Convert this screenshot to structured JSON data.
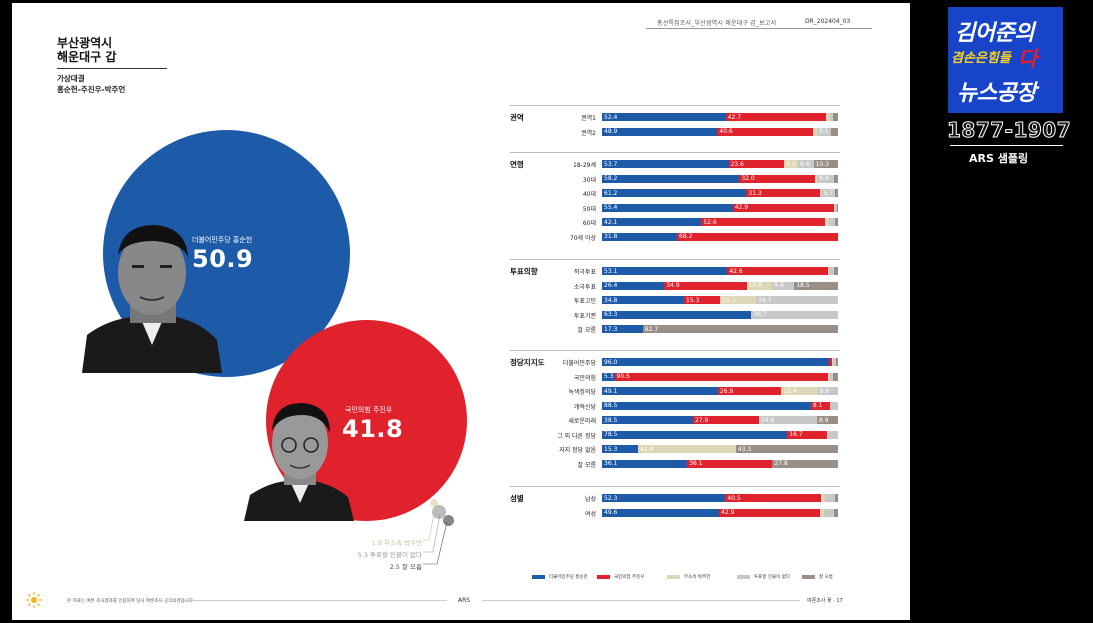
{
  "header": {
    "report": "총선특집조사_부산광역시 해운대구 갑_보고서",
    "code": "DR_202404_03"
  },
  "region": {
    "line1": "부산광역시",
    "line2": "해운대구 갑"
  },
  "matchup": {
    "line1": "가상대결",
    "line2": "홍순헌-주진우-박주언"
  },
  "candidates": {
    "a": {
      "name": "더불어민주당 홍순헌",
      "value": "50.9"
    },
    "b": {
      "name": "국민의힘 주진우",
      "value": "41.8"
    }
  },
  "minor": [
    {
      "text": "1.6 무소속 박주언",
      "color": "#c8bd8f"
    },
    {
      "text": "5.3 투표할 인물이 없다",
      "color": "#9a9a9a"
    },
    {
      "text": "2.5 잘 모름",
      "color": "#555555"
    }
  ],
  "colors": {
    "blue": "#1d5aa8",
    "red": "#e0222c",
    "tan": "#ddd6b7",
    "gray": "#c8c8c8",
    "brown": "#9a8f86"
  },
  "chart_data": {
    "type": "bar",
    "stacked": true,
    "orientation": "horizontal",
    "series": [
      {
        "name": "더불어민주당 홍순헌",
        "color": "#1d5aa8"
      },
      {
        "name": "국민의힘 주진우",
        "color": "#e0222c"
      },
      {
        "name": "무소속 박주언",
        "color": "#ddd6b7"
      },
      {
        "name": "투표할 인물이 없다",
        "color": "#c8c8c8"
      },
      {
        "name": "잘 모름",
        "color": "#9a8f86"
      }
    ],
    "groups": [
      {
        "label": "권역",
        "rows": [
          {
            "label": "권역1",
            "values": [
              52.4,
              42.7,
              1.6,
              1.0,
              2.3
            ]
          },
          {
            "label": "권역2",
            "values": [
              48.9,
              40.6,
              1.6,
              6.1,
              2.8
            ]
          }
        ]
      },
      {
        "label": "연령",
        "rows": [
          {
            "label": "18-29세",
            "values": [
              53.7,
              23.6,
              5.9,
              6.6,
              10.3
            ]
          },
          {
            "label": "30대",
            "values": [
              58.2,
              32.0,
              1.0,
              6.9,
              1.9
            ]
          },
          {
            "label": "40대",
            "values": [
              61.2,
              31.3,
              0.6,
              5.7,
              1.2
            ]
          },
          {
            "label": "50대",
            "values": [
              55.4,
              42.9,
              0.3,
              1.0,
              0.4
            ]
          },
          {
            "label": "60대",
            "values": [
              42.1,
              52.6,
              1.6,
              2.5,
              1.2
            ]
          },
          {
            "label": "70세 이상",
            "values": [
              31.8,
              68.2,
              0,
              0,
              0
            ]
          }
        ]
      },
      {
        "label": "투표의향",
        "rows": [
          {
            "label": "적극투표",
            "values": [
              53.1,
              42.6,
              0.7,
              2.0,
              1.6
            ]
          },
          {
            "label": "소극투표",
            "values": [
              26.4,
              34.9,
              10.8,
              9.4,
              18.5
            ]
          },
          {
            "label": "투표고민",
            "values": [
              34.8,
              15.3,
              15.3,
              34.7,
              0
            ]
          },
          {
            "label": "투표기권",
            "values": [
              63.3,
              0,
              0,
              36.7,
              0
            ]
          },
          {
            "label": "잘 모름",
            "values": [
              17.3,
              0,
              0,
              0,
              82.7
            ]
          }
        ]
      },
      {
        "label": "정당지지도",
        "rows": [
          {
            "label": "더불어민주당",
            "values": [
              96.0,
              1.5,
              0.3,
              1.5,
              0.7
            ]
          },
          {
            "label": "국민의힘",
            "values": [
              5.3,
              90.5,
              0.8,
              1.4,
              2.0
            ]
          },
          {
            "label": "녹색정의당",
            "values": [
              49.1,
              26.9,
              15.4,
              8.6,
              0
            ]
          },
          {
            "label": "개혁신당",
            "values": [
              88.5,
              8.1,
              0,
              3.4,
              0
            ]
          },
          {
            "label": "새로운미래",
            "values": [
              38.5,
              27.9,
              0,
              24.6,
              8.9
            ]
          },
          {
            "label": "그 외 다른 정당",
            "values": [
              78.5,
              16.7,
              0,
              4.8,
              0
            ]
          },
          {
            "label": "지지 정당 없음",
            "values": [
              15.3,
              0,
              41.4,
              0,
              43.3
            ]
          },
          {
            "label": "잘 모름",
            "values": [
              36.1,
              36.1,
              0,
              0,
              27.8
            ]
          }
        ]
      },
      {
        "label": "성별",
        "rows": [
          {
            "label": "남성",
            "values": [
              52.3,
              40.5,
              1.6,
              4.5,
              1.1
            ]
          },
          {
            "label": "여성",
            "values": [
              49.6,
              42.9,
              1.6,
              4.1,
              1.8
            ]
          }
        ]
      }
    ],
    "legend": [
      "더불어민주당 홍순헌",
      "국민의힘 주진우",
      "무소속 박주언",
      "투표할 인물이 없다",
      "잘 모름"
    ]
  },
  "footer": {
    "note": "본 자료는 여론 조사결과를 인용하여 당사 여론조사 공식의견입니다",
    "center": "ARS",
    "right": "여론조사 꽃 · 17"
  },
  "overlay": {
    "logo_line1": "김어준의",
    "logo_line2a": "겸손은힘들",
    "logo_line2b": "다",
    "logo_line3": "뉴스공장",
    "phone": "1877-1907",
    "phone_sub": "ARS 샘플링"
  }
}
